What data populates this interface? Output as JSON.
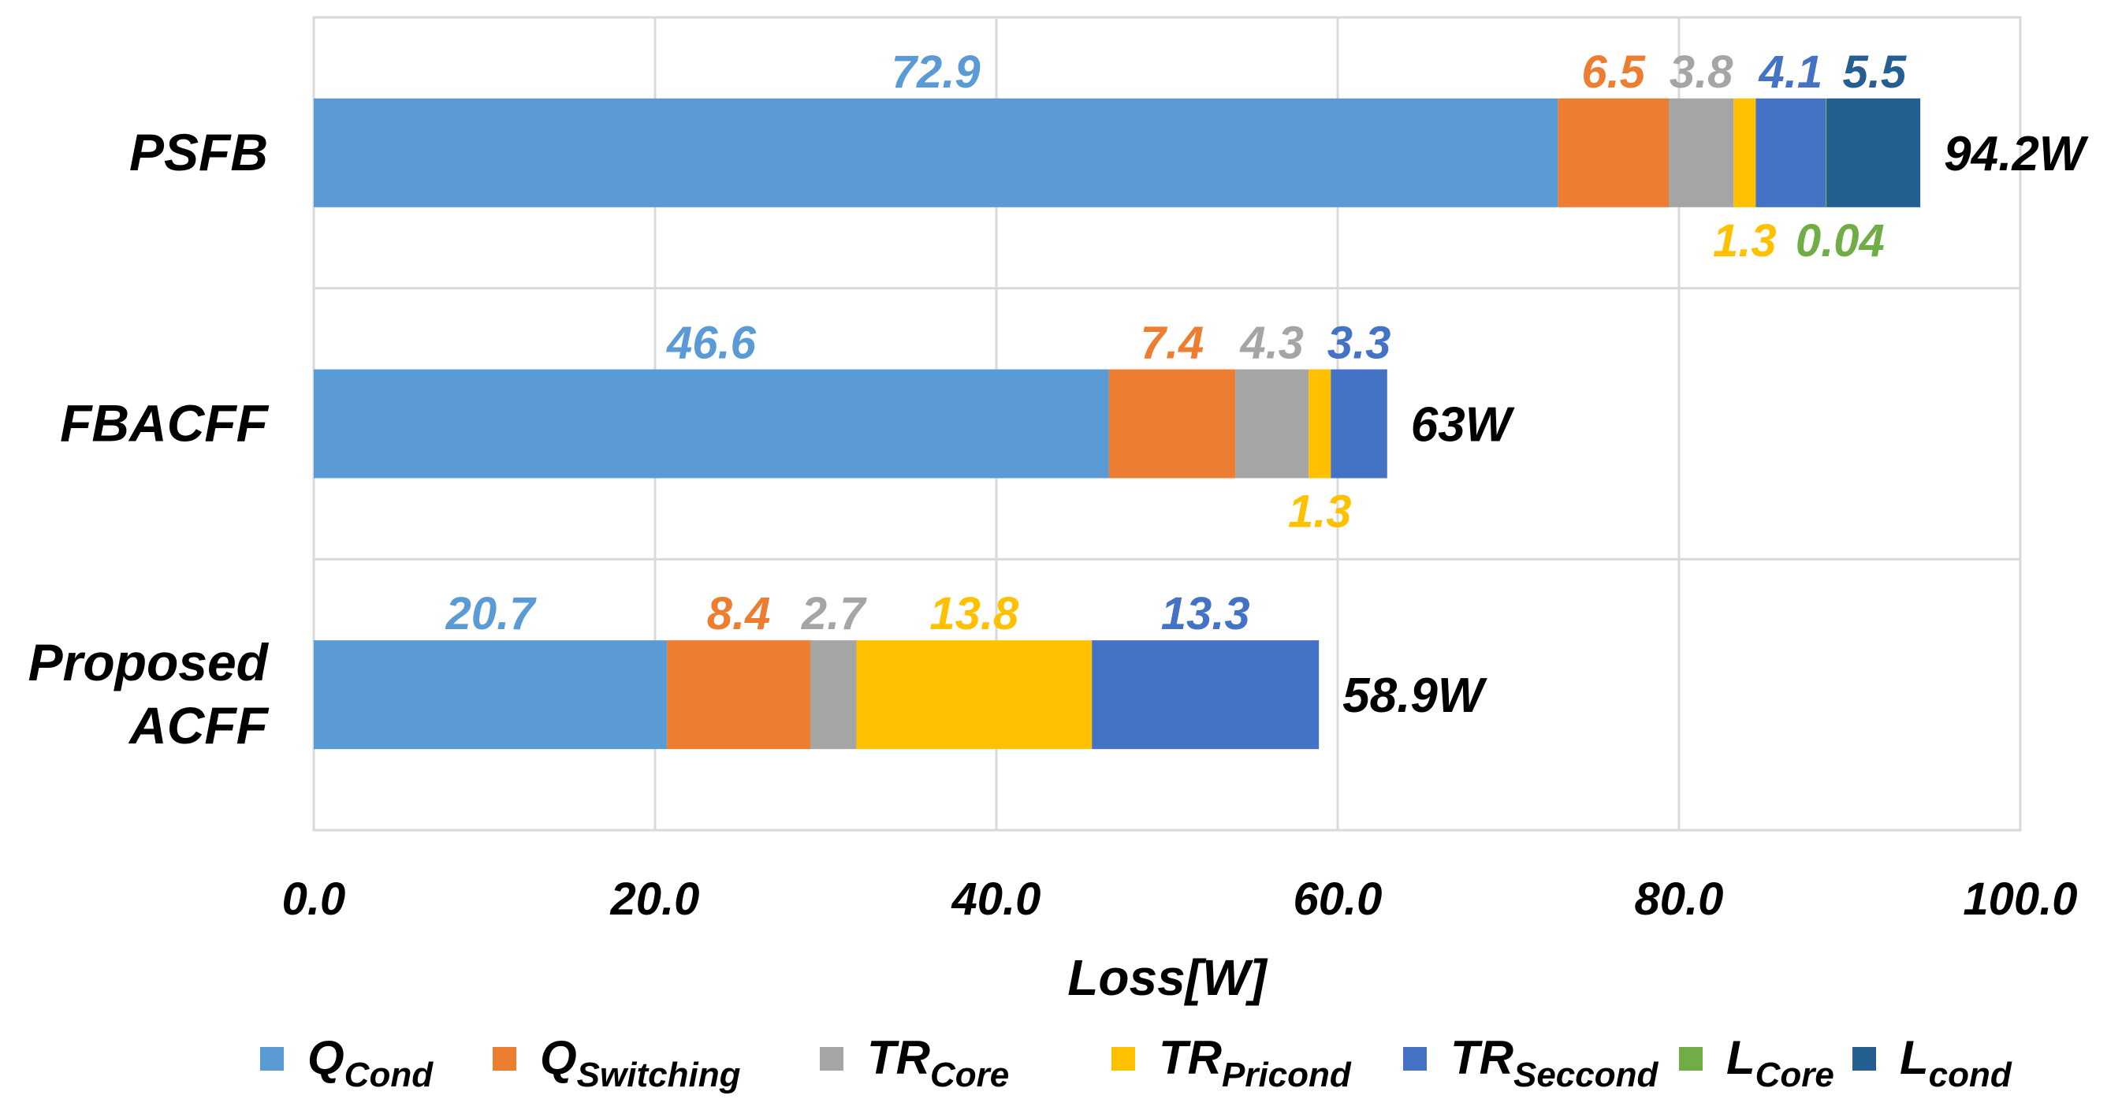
{
  "chart_data": {
    "type": "bar",
    "orientation": "horizontal",
    "stacked": true,
    "xlabel": "Loss[W]",
    "xlim": [
      0,
      100
    ],
    "xticks": [
      "0.0",
      "20.0",
      "40.0",
      "60.0",
      "80.0",
      "100.0"
    ],
    "grid": true,
    "legend_position": "bottom",
    "categories": [
      {
        "label_lines": [
          "PSFB"
        ],
        "total_label": "94.2W"
      },
      {
        "label_lines": [
          "FBACFF"
        ],
        "total_label": "63W"
      },
      {
        "label_lines": [
          "Proposed",
          "ACFF"
        ],
        "total_label": "58.9W"
      }
    ],
    "series": [
      {
        "name": "Q",
        "sub": "Cond",
        "color": "#5B9BD5",
        "values": [
          72.9,
          46.6,
          20.7
        ],
        "labels": [
          "72.9",
          "46.6",
          "20.7"
        ],
        "label_pos": [
          "above",
          "above",
          "above"
        ]
      },
      {
        "name": "Q",
        "sub": "Switching",
        "color": "#ED7D31",
        "values": [
          6.5,
          7.4,
          8.4
        ],
        "labels": [
          "6.5",
          "7.4",
          "8.4"
        ],
        "label_pos": [
          "above",
          "above",
          "above"
        ]
      },
      {
        "name": "TR",
        "sub": "Core",
        "color": "#A5A5A5",
        "values": [
          3.8,
          4.3,
          2.7
        ],
        "labels": [
          "3.8",
          "4.3",
          "2.7"
        ],
        "label_pos": [
          "above",
          "above",
          "above"
        ]
      },
      {
        "name": "TR",
        "sub": "Pricond",
        "color": "#FFC000",
        "values": [
          1.3,
          1.3,
          13.8
        ],
        "labels": [
          "1.3",
          "1.3",
          "13.8"
        ],
        "label_pos": [
          "below",
          "below",
          "above"
        ]
      },
      {
        "name": "TR",
        "sub": "Seccond",
        "color": "#4472C4",
        "values": [
          4.1,
          3.3,
          13.3
        ],
        "labels": [
          "4.1",
          "3.3",
          "13.3"
        ],
        "label_pos": [
          "above",
          "above",
          "above"
        ]
      },
      {
        "name": "L",
        "sub": "Core",
        "color": "#70AD47",
        "values": [
          0.04,
          0,
          0
        ],
        "labels": [
          "0.04",
          "",
          ""
        ],
        "label_pos": [
          "below",
          "below",
          "below"
        ]
      },
      {
        "name": "L",
        "sub": "cond",
        "color": "#255E91",
        "values": [
          5.5,
          0,
          0
        ],
        "labels": [
          "5.5",
          "",
          ""
        ],
        "label_pos": [
          "above",
          "above",
          "above"
        ]
      }
    ]
  }
}
